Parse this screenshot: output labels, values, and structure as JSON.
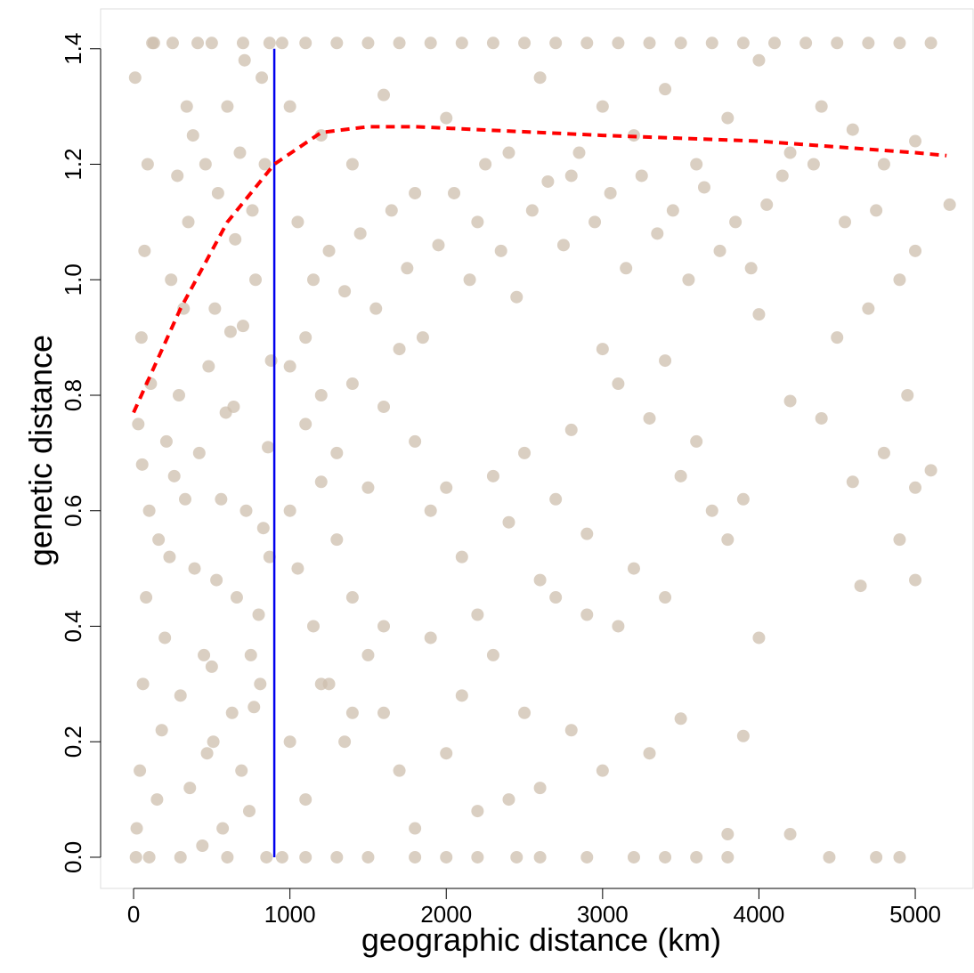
{
  "chart_data": {
    "type": "scatter",
    "x_label": "geographic distance (km)",
    "y_label": "genetic distance",
    "color": "#cdbfae",
    "x": [
      20,
      40,
      60,
      80,
      100,
      30,
      50,
      70,
      90,
      10,
      120,
      150,
      180,
      200,
      230,
      260,
      290,
      320,
      350,
      380,
      410,
      440,
      470,
      500,
      530,
      560,
      590,
      620,
      650,
      680,
      710,
      740,
      770,
      800,
      830,
      860,
      880,
      240,
      300,
      360,
      420,
      480,
      540,
      600,
      660,
      720,
      780,
      840,
      15,
      100,
      300,
      600,
      850,
      130,
      250,
      500,
      700,
      870,
      160,
      210,
      330,
      390,
      450,
      510,
      570,
      630,
      690,
      750,
      810,
      870,
      55,
      110,
      280,
      340,
      460,
      520,
      640,
      700,
      760,
      820,
      950,
      1100,
      1300,
      1500,
      1700,
      1900,
      2100,
      2300,
      2500,
      2700,
      2900,
      3100,
      3300,
      3500,
      3700,
      3900,
      4100,
      4300,
      4500,
      4700,
      4900,
      5100,
      1000,
      1200,
      1400,
      1600,
      1800,
      2000,
      2200,
      2400,
      2600,
      2800,
      3000,
      3200,
      3400,
      3600,
      3800,
      4000,
      4200,
      4400,
      4600,
      4800,
      5000,
      5220,
      1050,
      1150,
      1250,
      1350,
      1450,
      1550,
      1650,
      1750,
      1850,
      1950,
      2050,
      2150,
      2250,
      2350,
      2450,
      2550,
      2650,
      2750,
      2850,
      2950,
      3050,
      3150,
      3250,
      3350,
      3450,
      3550,
      3650,
      3750,
      3850,
      3950,
      4050,
      4150,
      4350,
      4550,
      4750,
      4900,
      5000,
      1000,
      1100,
      1200,
      1300,
      1400,
      1500,
      1600,
      1700,
      1800,
      1050,
      1150,
      1250,
      1350,
      1000,
      1100,
      1200,
      1300,
      1400,
      1500,
      1600,
      1700,
      1800,
      1900,
      2000,
      2100,
      2200,
      2300,
      2400,
      2500,
      2600,
      2700,
      2800,
      2900,
      3000,
      3100,
      3200,
      3300,
      3400,
      3500,
      3600,
      3700,
      3800,
      3900,
      4000,
      4200,
      4400,
      4600,
      4800,
      5000,
      5100,
      4950,
      4700,
      4500,
      1000,
      1100,
      1200,
      1400,
      1600,
      1900,
      2100,
      2300,
      2500,
      2700,
      2900,
      3100,
      3400,
      3500,
      3300,
      3000,
      2800,
      2600,
      2400,
      2200,
      2000,
      3800,
      4000,
      4200,
      3900,
      4650,
      4900,
      5000,
      950,
      1100,
      1300,
      1500,
      1800,
      2000,
      2200,
      2450,
      2600,
      2900,
      3200,
      3400,
      3600,
      3800,
      4450,
      4750,
      4900
    ],
    "values": [
      0.05,
      0.15,
      0.3,
      0.45,
      0.6,
      0.75,
      0.9,
      1.05,
      1.2,
      1.35,
      1.41,
      0.1,
      0.22,
      0.38,
      0.52,
      0.66,
      0.8,
      0.95,
      1.1,
      1.25,
      1.41,
      0.02,
      0.18,
      0.33,
      0.48,
      0.62,
      0.77,
      0.91,
      1.07,
      1.22,
      1.38,
      0.08,
      0.26,
      0.42,
      0.57,
      0.71,
      0.86,
      1.0,
      0.28,
      0.12,
      0.7,
      0.85,
      1.15,
      1.3,
      0.45,
      0.6,
      1.0,
      1.2,
      0,
      0,
      0,
      0,
      0,
      1.41,
      1.41,
      1.41,
      1.41,
      1.41,
      0.55,
      0.72,
      0.62,
      0.5,
      0.35,
      0.2,
      0.05,
      0.25,
      0.15,
      0.35,
      0.3,
      0.52,
      0.68,
      0.82,
      1.18,
      1.3,
      1.2,
      0.95,
      0.78,
      0.92,
      1.12,
      1.35,
      1.41,
      1.41,
      1.41,
      1.41,
      1.41,
      1.41,
      1.41,
      1.41,
      1.41,
      1.41,
      1.41,
      1.41,
      1.41,
      1.41,
      1.41,
      1.41,
      1.41,
      1.41,
      1.41,
      1.41,
      1.41,
      1.41,
      1.3,
      1.25,
      1.2,
      1.32,
      1.15,
      1.28,
      1.1,
      1.22,
      1.35,
      1.18,
      1.3,
      1.25,
      1.33,
      1.2,
      1.28,
      1.38,
      1.22,
      1.3,
      1.26,
      1.2,
      1.24,
      1.13,
      1.1,
      1.0,
      1.05,
      0.98,
      1.08,
      0.95,
      1.12,
      1.02,
      0.9,
      1.06,
      1.15,
      1.0,
      1.2,
      1.05,
      0.97,
      1.12,
      1.17,
      1.06,
      1.22,
      1.1,
      1.15,
      1.02,
      1.18,
      1.08,
      1.12,
      1.0,
      1.16,
      1.05,
      1.1,
      1.02,
      1.13,
      1.18,
      1.2,
      1.1,
      1.12,
      1.0,
      1.05,
      0.85,
      0.75,
      0.65,
      0.55,
      0.45,
      0.35,
      0.25,
      0.15,
      0.05,
      0.5,
      0.4,
      0.3,
      0.2,
      0.6,
      0.9,
      0.8,
      0.7,
      0.82,
      0.64,
      0.78,
      0.88,
      0.72,
      0.6,
      0.64,
      0.52,
      0.42,
      0.66,
      0.58,
      0.7,
      0.48,
      0.62,
      0.74,
      0.56,
      0.88,
      0.82,
      0.5,
      0.76,
      0.86,
      0.66,
      0.72,
      0.6,
      0.55,
      0.62,
      0.94,
      0.79,
      0.76,
      0.65,
      0.7,
      0.64,
      0.67,
      0.8,
      0.95,
      0.9,
      0.2,
      0.1,
      0.3,
      0.25,
      0.4,
      0.38,
      0.28,
      0.35,
      0.25,
      0.45,
      0.42,
      0.4,
      0.45,
      0.24,
      0.18,
      0.15,
      0.22,
      0.12,
      0.1,
      0.08,
      0.18,
      0.04,
      0.38,
      0.04,
      0.21,
      0.47,
      0.55,
      0.48,
      0,
      0,
      0,
      0,
      0,
      0,
      0,
      0,
      0,
      0,
      0,
      0,
      0,
      0,
      0,
      0,
      0
    ],
    "curve": {
      "color": "#ff0000",
      "x": [
        0,
        300,
        600,
        900,
        1200,
        1500,
        1800,
        2200,
        2600,
        3000,
        3500,
        4000,
        4500,
        5000,
        5200
      ],
      "values": [
        0.77,
        0.95,
        1.1,
        1.2,
        1.255,
        1.265,
        1.265,
        1.26,
        1.255,
        1.25,
        1.245,
        1.24,
        1.23,
        1.22,
        1.215
      ]
    },
    "vline": {
      "color": "#0000ee",
      "x": 900,
      "y": [
        0,
        1.4
      ]
    },
    "xlim": [
      -211,
      5370
    ],
    "ylim": [
      -0.054,
      1.469
    ],
    "xticks": [
      0,
      1000,
      2000,
      3000,
      4000,
      5000
    ],
    "yticks": [
      {
        "value": 0,
        "label": "0.0"
      },
      0.2,
      0.4,
      0.6,
      0.8,
      {
        "value": 1,
        "label": "1.0"
      },
      1.2,
      1.4
    ]
  }
}
